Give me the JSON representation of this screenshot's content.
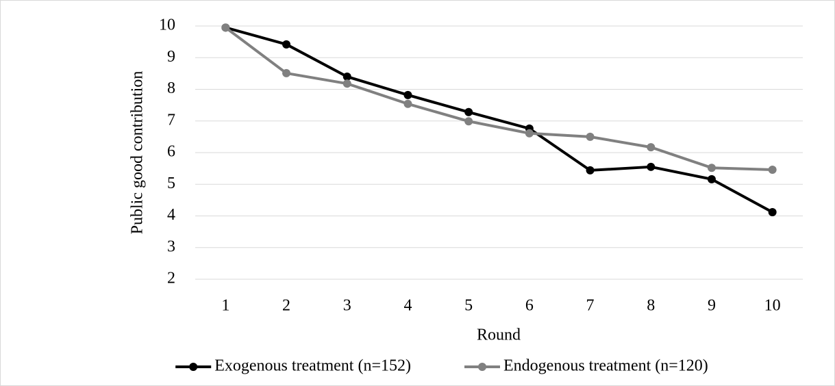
{
  "chart_data": {
    "type": "line",
    "y_label": "Public good contribution",
    "x_label": "Round",
    "categories": [
      "1",
      "2",
      "3",
      "4",
      "5",
      "6",
      "7",
      "8",
      "9",
      "10"
    ],
    "series": [
      {
        "name": "Exogenous treatment (n=152)",
        "color": "#000000",
        "values": [
          9.95,
          9.42,
          8.4,
          7.82,
          7.28,
          6.76,
          5.44,
          5.55,
          5.16,
          4.12
        ]
      },
      {
        "name": "Endogenous treatment (n=120)",
        "color": "#808080",
        "values": [
          9.95,
          8.51,
          8.18,
          7.54,
          6.99,
          6.61,
          6.5,
          6.17,
          5.52,
          5.46
        ]
      }
    ],
    "ylim": [
      2,
      10
    ],
    "yticks": [
      2,
      3,
      4,
      5,
      6,
      7,
      8,
      9,
      10
    ],
    "grid": true,
    "legend": "bottom"
  }
}
